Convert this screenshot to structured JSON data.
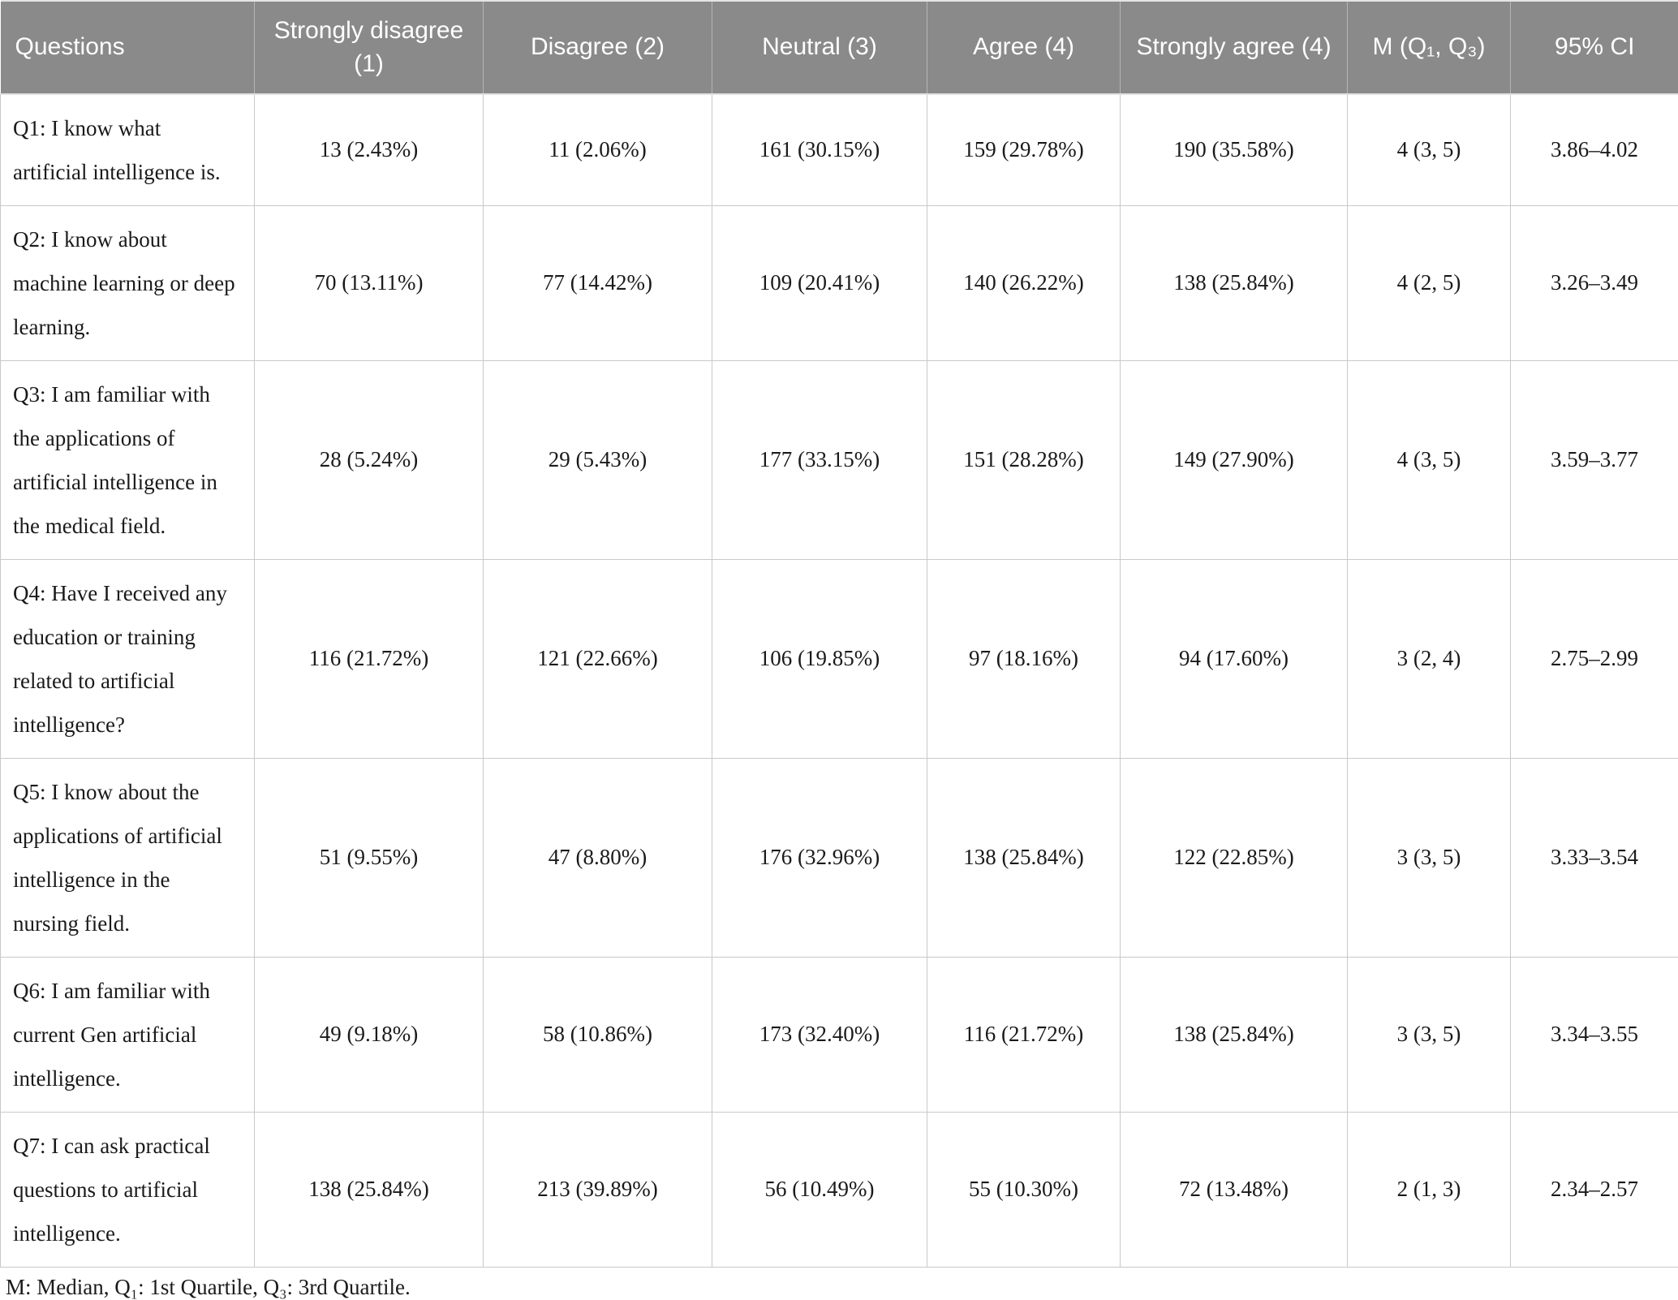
{
  "colors": {
    "header_bg": "#8a8a8a",
    "header_text": "#ffffff",
    "border": "#c9c9c9"
  },
  "table": {
    "columns": [
      {
        "label": "Questions"
      },
      {
        "label": "Strongly disagree (1)"
      },
      {
        "label": "Disagree (2)"
      },
      {
        "label": "Neutral (3)"
      },
      {
        "label": "Agree (4)"
      },
      {
        "label": "Strongly agree (4)"
      },
      {
        "label": "M (Q₁, Q₃)"
      },
      {
        "label": "95% CI"
      }
    ],
    "rows": [
      {
        "question": "Q1: I know what artificial intelligence is.",
        "cells": [
          "13 (2.43%)",
          "11 (2.06%)",
          "161 (30.15%)",
          "159 (29.78%)",
          "190 (35.58%)",
          "4 (3, 5)",
          "3.86–4.02"
        ]
      },
      {
        "question": "Q2: I know about machine learning or deep learning.",
        "cells": [
          "70 (13.11%)",
          "77 (14.42%)",
          "109 (20.41%)",
          "140 (26.22%)",
          "138 (25.84%)",
          "4 (2, 5)",
          "3.26–3.49"
        ]
      },
      {
        "question": "Q3: I am familiar with the applications of artificial intelligence in the medical field.",
        "cells": [
          "28 (5.24%)",
          "29 (5.43%)",
          "177 (33.15%)",
          "151 (28.28%)",
          "149 (27.90%)",
          "4 (3, 5)",
          "3.59–3.77"
        ]
      },
      {
        "question": "Q4: Have I received any education or training related to artificial intelligence?",
        "cells": [
          "116 (21.72%)",
          "121 (22.66%)",
          "106 (19.85%)",
          "97 (18.16%)",
          "94 (17.60%)",
          "3 (2, 4)",
          "2.75–2.99"
        ]
      },
      {
        "question": "Q5: I know about the applications of artificial intelligence in the nursing field.",
        "cells": [
          "51 (9.55%)",
          "47 (8.80%)",
          "176 (32.96%)",
          "138 (25.84%)",
          "122 (22.85%)",
          "3 (3, 5)",
          "3.33–3.54"
        ]
      },
      {
        "question": "Q6: I am familiar with current Gen artificial intelligence.",
        "cells": [
          "49 (9.18%)",
          "58 (10.86%)",
          "173 (32.40%)",
          "116 (21.72%)",
          "138 (25.84%)",
          "3 (3, 5)",
          "3.34–3.55"
        ]
      },
      {
        "question": "Q7: I can ask practical questions to artificial intelligence.",
        "cells": [
          "138 (25.84%)",
          "213 (39.89%)",
          "56 (10.49%)",
          "55 (10.30%)",
          "72 (13.48%)",
          "2 (1, 3)",
          "2.34–2.57"
        ]
      }
    ],
    "footnote": "M: Median, Q₁: 1st Quartile, Q₃: 3rd Quartile."
  }
}
